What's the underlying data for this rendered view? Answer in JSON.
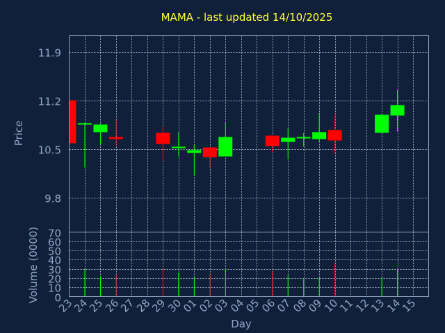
{
  "chart_data": {
    "type": "candlestick",
    "title": "MAMA - last updated 14/10/2025",
    "xlabel": "Day",
    "price": {
      "ylabel": "Price",
      "ylim": [
        9.3,
        12.13
      ],
      "yticks": [
        9.8,
        10.5,
        11.2,
        11.9
      ],
      "ytick_labels": [
        "9.8",
        "10.5",
        "11.2",
        "11.9"
      ]
    },
    "volume": {
      "ylabel": "Volume (0000)",
      "ylim": [
        0,
        70
      ],
      "yticks": [
        0,
        10,
        20,
        30,
        40,
        50,
        60,
        70
      ],
      "ytick_labels": [
        "0",
        "10",
        "20",
        "30",
        "40",
        "50",
        "60",
        "70"
      ]
    },
    "x_tick_labels": [
      "23",
      "24",
      "25",
      "26",
      "27",
      "28",
      "29",
      "30",
      "01",
      "02",
      "03",
      "04",
      "05",
      "06",
      "07",
      "08",
      "09",
      "10",
      "11",
      "12",
      "13",
      "14",
      "15"
    ],
    "candles": [
      {
        "day": "23",
        "open": 11.2,
        "high": 11.2,
        "low": 10.58,
        "close": 10.58,
        "volume": 0
      },
      {
        "day": "24",
        "open": 10.85,
        "high": 10.88,
        "low": 10.23,
        "close": 10.87,
        "volume": 30
      },
      {
        "day": "25",
        "open": 10.74,
        "high": 10.86,
        "low": 10.56,
        "close": 10.85,
        "volume": 22
      },
      {
        "day": "26",
        "open": 10.67,
        "high": 10.92,
        "low": 10.55,
        "close": 10.64,
        "volume": 24
      },
      {
        "day": "29",
        "open": 10.73,
        "high": 10.82,
        "low": 10.33,
        "close": 10.57,
        "volume": 30
      },
      {
        "day": "30",
        "open": 10.51,
        "high": 10.74,
        "low": 10.39,
        "close": 10.53,
        "volume": 26
      },
      {
        "day": "01",
        "open": 10.44,
        "high": 10.55,
        "low": 10.13,
        "close": 10.48,
        "volume": 22
      },
      {
        "day": "02",
        "open": 10.52,
        "high": 10.52,
        "low": 10.22,
        "close": 10.38,
        "volume": 25
      },
      {
        "day": "03",
        "open": 10.39,
        "high": 10.88,
        "low": 10.39,
        "close": 10.67,
        "volume": 30
      },
      {
        "day": "06",
        "open": 10.69,
        "high": 10.69,
        "low": 10.45,
        "close": 10.54,
        "volume": 28
      },
      {
        "day": "07",
        "open": 10.6,
        "high": 10.8,
        "low": 10.35,
        "close": 10.66,
        "volume": 23
      },
      {
        "day": "08",
        "open": 10.65,
        "high": 10.73,
        "low": 10.53,
        "close": 10.67,
        "volume": 19
      },
      {
        "day": "09",
        "open": 10.64,
        "high": 11.02,
        "low": 10.61,
        "close": 10.74,
        "volume": 20
      },
      {
        "day": "10",
        "open": 10.77,
        "high": 10.99,
        "low": 10.42,
        "close": 10.62,
        "volume": 36
      },
      {
        "day": "13",
        "open": 10.73,
        "high": 11.0,
        "low": 10.73,
        "close": 10.99,
        "volume": 21
      },
      {
        "day": "14",
        "open": 10.98,
        "high": 11.35,
        "low": 10.75,
        "close": 11.13,
        "volume": 30
      }
    ],
    "colors": {
      "background": "#10203a",
      "up": "#00ff00",
      "down": "#ff0000",
      "title": "#ffff33",
      "axis": "#8fa6c8",
      "grid": "#c8d0dc"
    }
  }
}
